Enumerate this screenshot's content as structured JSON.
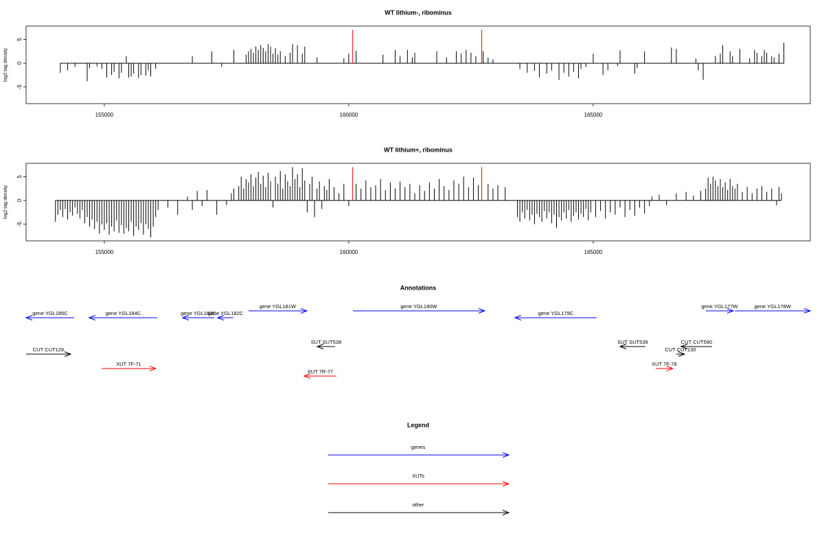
{
  "chart_data": [
    {
      "type": "bar",
      "title": "WT lithium-, ribominus",
      "y_label": "log2 tag density",
      "xlim": [
        153400,
        169440
      ],
      "ylim": [
        -8.5,
        7.8
      ],
      "xticks": [
        155000,
        160000,
        165000
      ],
      "yticks": [
        -5,
        0,
        5
      ],
      "series": [
        {
          "color": "#000000",
          "x": [
            154100,
            154250,
            154400,
            154650,
            154700,
            154850,
            154950,
            155050,
            155150,
            155200,
            155300,
            155350,
            155450,
            155500,
            155550,
            155600,
            155700,
            155750,
            155850,
            155900,
            155950,
            156050,
            156800,
            157200,
            157400,
            157650,
            157900,
            157950,
            158000,
            158050,
            158100,
            158150,
            158200,
            158250,
            158300,
            158350,
            158400,
            158450,
            158500,
            158550,
            158600,
            158700,
            158800,
            158850,
            158950,
            159050,
            159100,
            159350,
            159900,
            160000,
            160150,
            160700,
            160950,
            161050,
            161200,
            161300,
            161350,
            161800,
            162000,
            162200,
            162300,
            162400,
            162500,
            162600,
            162750,
            162850,
            162950,
            163500,
            163650,
            163800,
            163900,
            164050,
            164150,
            164300,
            164400,
            164500,
            164600,
            164700,
            164750,
            164850,
            165000,
            165200,
            165300,
            165500,
            165550,
            165850,
            165900,
            166050,
            166600,
            166700,
            167100,
            167150,
            167250,
            167500,
            167600,
            167650,
            167800,
            167850,
            168000,
            168200,
            168300,
            168350,
            168450,
            168500,
            168550,
            168650,
            168700,
            168800,
            168900
          ],
          "values": [
            -2,
            -1.5,
            -0.8,
            -3.8,
            -1,
            -0.7,
            -1.2,
            -3,
            -2.5,
            -1.8,
            -3.2,
            -2,
            1.5,
            -3,
            -2.8,
            -2.2,
            -3.1,
            -2.5,
            -2.6,
            -1.5,
            -2.8,
            -1.2,
            1.5,
            2.5,
            -0.8,
            2.8,
            1.8,
            2.5,
            3,
            2.2,
            3.5,
            2.8,
            3.8,
            3.2,
            2.5,
            4,
            3.5,
            2,
            3.2,
            1.8,
            2.5,
            1.5,
            2.2,
            4,
            3.8,
            2,
            3.5,
            1.2,
            1,
            2,
            2.6,
            1.8,
            2.8,
            1.5,
            2.8,
            1.2,
            2.2,
            2.5,
            1.2,
            2.5,
            2,
            2.8,
            2.2,
            1.5,
            2.5,
            1.2,
            0.8,
            -1.2,
            -2,
            -1.6,
            -3,
            -2.2,
            -1.5,
            -3.5,
            -2,
            -2.8,
            -1.8,
            -3.2,
            -1.2,
            -0.8,
            2,
            -2.5,
            -1.5,
            -0.6,
            2.7,
            -2.2,
            -1,
            2.5,
            3.3,
            3,
            1,
            -1.5,
            -3.5,
            1.5,
            2,
            3.8,
            2.5,
            1.5,
            3,
            1,
            2.8,
            2.2,
            1.5,
            2.8,
            2.2,
            1.5,
            1.2,
            2,
            4.3
          ]
        },
        {
          "color": "#ff0000",
          "x": [
            160080,
            162720
          ],
          "values": [
            7,
            7
          ]
        }
      ]
    },
    {
      "type": "bar",
      "title": "WT lithium+, ribominus",
      "y_label": "log2 tag density",
      "xlim": [
        153400,
        169440
      ],
      "ylim": [
        -8.5,
        7.8
      ],
      "xticks": [
        155000,
        160000,
        165000
      ],
      "yticks": [
        -5,
        0,
        5
      ],
      "series": [
        {
          "color": "#000000",
          "x": [
            154000,
            154050,
            154100,
            154150,
            154200,
            154250,
            154300,
            154350,
            154400,
            154450,
            154500,
            154550,
            154600,
            154650,
            154700,
            154750,
            154800,
            154850,
            154900,
            154950,
            155000,
            155050,
            155100,
            155150,
            155200,
            155250,
            155300,
            155350,
            155400,
            155450,
            155500,
            155550,
            155600,
            155650,
            155700,
            155750,
            155800,
            155850,
            155900,
            155950,
            156000,
            156050,
            156100,
            156300,
            156500,
            156700,
            156800,
            156900,
            157000,
            157100,
            157300,
            157500,
            157600,
            157650,
            157750,
            157800,
            157850,
            157900,
            157950,
            158000,
            158050,
            158100,
            158150,
            158200,
            158250,
            158300,
            158350,
            158400,
            158450,
            158500,
            158550,
            158600,
            158650,
            158700,
            158750,
            158800,
            158850,
            158900,
            158950,
            159000,
            159050,
            159100,
            159150,
            159200,
            159250,
            159300,
            159350,
            159400,
            159450,
            159500,
            159550,
            159600,
            159700,
            159800,
            159900,
            160000,
            160150,
            160250,
            160350,
            160450,
            160550,
            160650,
            160750,
            160850,
            160950,
            161050,
            161150,
            161250,
            161350,
            161450,
            161550,
            161650,
            161750,
            161850,
            161950,
            162050,
            162150,
            162250,
            162350,
            162450,
            162550,
            162650,
            162850,
            162950,
            163050,
            163200,
            163450,
            163500,
            163550,
            163600,
            163650,
            163700,
            163750,
            163800,
            163850,
            163900,
            163950,
            164000,
            164050,
            164100,
            164150,
            164200,
            164250,
            164300,
            164350,
            164400,
            164450,
            164500,
            164550,
            164600,
            164650,
            164700,
            164750,
            164800,
            164850,
            164900,
            164950,
            165050,
            165150,
            165250,
            165350,
            165450,
            165550,
            165650,
            165750,
            165850,
            165950,
            166050,
            166150,
            166200,
            166350,
            166500,
            166700,
            166900,
            167050,
            167200,
            167300,
            167350,
            167400,
            167450,
            167500,
            167550,
            167600,
            167650,
            167700,
            167750,
            167800,
            167850,
            167900,
            167950,
            168050,
            168150,
            168250,
            168350,
            168450,
            168550,
            168650,
            168750,
            168800,
            168850
          ],
          "values": [
            -4.5,
            -3,
            -2,
            -3.5,
            -1.8,
            -4,
            -2.5,
            -3.2,
            -1.5,
            -2.8,
            -3.8,
            -2,
            -4.8,
            -3.5,
            -5.5,
            -4,
            -6,
            -4.5,
            -7,
            -5,
            -6.2,
            -4.8,
            -7.2,
            -5.5,
            -6.5,
            -4.2,
            -6.8,
            -5.2,
            -7,
            -5.8,
            -6.5,
            -4.5,
            -7.5,
            -5.5,
            -6.2,
            -4.8,
            -7.2,
            -5,
            -6,
            -7.8,
            -5.5,
            -3.5,
            -2,
            -1.5,
            -3,
            0.8,
            -2,
            2,
            -1.2,
            2.2,
            -3,
            -1,
            1.5,
            2.5,
            3,
            5,
            2.5,
            4.5,
            3.8,
            5.5,
            3,
            4.8,
            6,
            3.5,
            5.2,
            2.8,
            5.8,
            4,
            -1.5,
            5,
            3.5,
            6.2,
            2.5,
            5.5,
            4,
            3,
            7,
            4.5,
            5.5,
            2.8,
            6.8,
            4.2,
            -2.5,
            3.5,
            5,
            -3.5,
            2.5,
            4,
            -1.8,
            3,
            2.2,
            4.5,
            2.8,
            1.5,
            3.5,
            -1.2,
            3.5,
            2.5,
            4.2,
            2.8,
            3.2,
            4.5,
            2.2,
            3.8,
            2.5,
            4,
            2.8,
            3.5,
            1.5,
            3.2,
            2,
            3.8,
            2.5,
            4.5,
            3,
            2.2,
            4.2,
            3.5,
            5,
            2.8,
            4.8,
            3.2,
            3.5,
            2.5,
            3.2,
            2.8,
            -3.5,
            -4.5,
            -2.5,
            -3.8,
            -2,
            -4.2,
            -3,
            -5,
            -2.8,
            -3.5,
            -4.5,
            -2.2,
            -3.8,
            -2.5,
            -4.8,
            -3,
            -5.8,
            -3.5,
            -4.2,
            -2.5,
            -3.8,
            -2,
            -4.5,
            -3.2,
            -2.5,
            -4,
            -2.8,
            -3.5,
            -1.8,
            -4.2,
            -2.5,
            -3.5,
            -2.2,
            -3.8,
            -2.5,
            -3,
            -1.5,
            -3.5,
            -2,
            -3.2,
            -1.5,
            -2.8,
            -1.2,
            0.8,
            1.2,
            -1,
            1.5,
            1.8,
            1,
            2,
            2.5,
            4.8,
            3.5,
            5,
            4.2,
            3,
            4.5,
            2.8,
            3.8,
            2.2,
            4.5,
            3,
            2.5,
            3.5,
            1.8,
            2.8,
            1.5,
            2.5,
            3,
            1.8,
            2.5,
            -1,
            2.8,
            1.5
          ]
        },
        {
          "color": "#ff0000",
          "x": [
            160080,
            162720
          ],
          "values": [
            7,
            7
          ]
        }
      ]
    }
  ],
  "annotations": {
    "title": "Annotations",
    "features": [
      {
        "label": "gene YGL185C",
        "start": 153400,
        "end": 154383,
        "strand": "-",
        "color": "#0000ff"
      },
      {
        "label": "gene YGL184C",
        "start": 154691,
        "end": 156081,
        "strand": "-",
        "color": "#0000ff"
      },
      {
        "label": "gene YGL183C",
        "start": 156601,
        "end": 157247,
        "strand": "-",
        "color": "#0000ff"
      },
      {
        "label": "gene YGL182C",
        "start": 157317,
        "end": 157640,
        "strand": "-",
        "color": "#0000ff"
      },
      {
        "label": "gene YGL181W",
        "start": 157949,
        "end": 159143,
        "strand": "+",
        "color": "#0000ff"
      },
      {
        "label": "gene YGL180W",
        "start": 160084,
        "end": 162781,
        "strand": "+",
        "color": "#0000ff"
      },
      {
        "label": "gene YGL179C",
        "start": 163399,
        "end": 165070,
        "strand": "-",
        "color": "#0000ff"
      },
      {
        "label": "gene YGL177W",
        "start": 167303,
        "end": 167865,
        "strand": "+",
        "color": "#0000ff"
      },
      {
        "label": "gene YGL178W",
        "start": 167900,
        "end": 169440,
        "strand": "+",
        "color": "#0000ff"
      },
      {
        "label": "CUT CUT129",
        "start": 153400,
        "end": 154312,
        "strand": "+",
        "color": "#000000"
      },
      {
        "label": "SUT SUT538",
        "start": 159354,
        "end": 159719,
        "strand": "-",
        "color": "#000000"
      },
      {
        "label": "SUT SUT539",
        "start": 165548,
        "end": 166067,
        "strand": "-",
        "color": "#000000"
      },
      {
        "label": "CUT CUT130",
        "start": 166699,
        "end": 166868,
        "strand": "+",
        "color": "#000000"
      },
      {
        "label": "CUT CUT590",
        "start": 166798,
        "end": 167430,
        "strand": "-",
        "color": "#000000"
      },
      {
        "label": "XUT 7F-71",
        "start": 154944,
        "end": 156053,
        "strand": "+",
        "color": "#ff0000"
      },
      {
        "label": "XUT 7R-77",
        "start": 159087,
        "end": 159747,
        "strand": "-",
        "color": "#ff0000"
      },
      {
        "label": "XUT 7F-78",
        "start": 166278,
        "end": 166629,
        "strand": "+",
        "color": "#ff0000"
      }
    ]
  },
  "legend": {
    "title": "Legend",
    "items": [
      {
        "label": "genes",
        "color": "#0000ff"
      },
      {
        "label": "XUTs",
        "color": "#ff0000"
      },
      {
        "label": "other",
        "color": "#000000"
      }
    ]
  }
}
